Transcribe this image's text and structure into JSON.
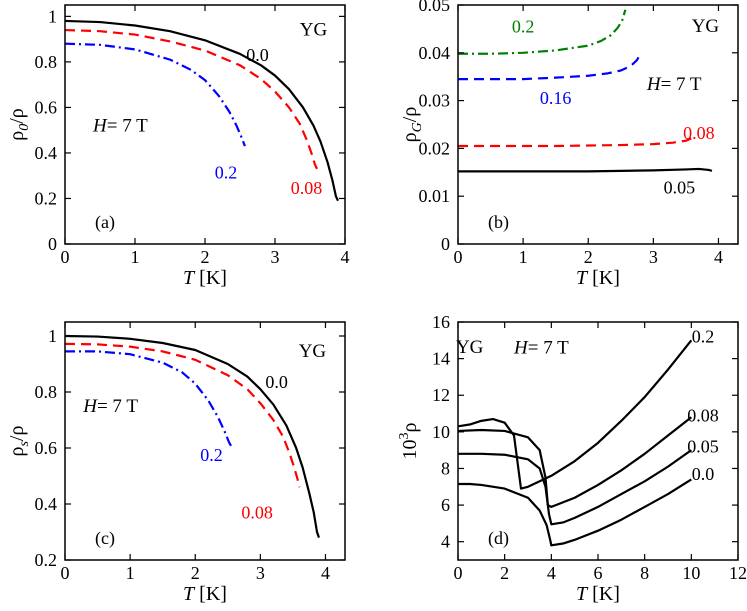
{
  "chart_data": [
    {
      "id": "a",
      "type": "line",
      "panel_label": "(a)",
      "xlabel_italic": "T",
      "xlabel_rest": " [K]",
      "ylabel_main": "ρ",
      "ylabel_sub": "0",
      "ylabel_rest": "/ρ",
      "xlim": [
        0,
        4
      ],
      "ylim": [
        0,
        1.05
      ],
      "xticks": [
        0,
        1,
        2,
        3,
        4
      ],
      "yticks": [
        0,
        0.2,
        0.4,
        0.6,
        0.8,
        1
      ],
      "annotations": [
        {
          "text": "YG",
          "x": 3.55,
          "y": 0.94
        },
        {
          "parts": [
            {
              "text": "H",
              "italic": true
            },
            {
              "text": "= 7 T",
              "italic": false
            }
          ],
          "x": 0.4,
          "y": 0.52
        }
      ],
      "series": [
        {
          "name": "0.0",
          "style": "solid",
          "color": "#000000",
          "label_xy": [
            2.75,
            0.83
          ],
          "x": [
            0,
            0.5,
            1.0,
            1.5,
            2.0,
            2.5,
            2.8,
            3.0,
            3.2,
            3.4,
            3.55,
            3.65,
            3.75,
            3.82,
            3.87,
            3.9
          ],
          "y": [
            0.98,
            0.975,
            0.96,
            0.935,
            0.895,
            0.835,
            0.785,
            0.74,
            0.68,
            0.6,
            0.52,
            0.45,
            0.36,
            0.28,
            0.21,
            0.19
          ]
        },
        {
          "name": "0.08",
          "style": "dashed",
          "color": "#ff0000",
          "label_xy": [
            3.45,
            0.245
          ],
          "x": [
            0,
            0.5,
            1.0,
            1.5,
            2.0,
            2.5,
            2.8,
            3.0,
            3.2,
            3.35,
            3.45,
            3.52,
            3.57,
            3.6
          ],
          "y": [
            0.94,
            0.935,
            0.92,
            0.89,
            0.85,
            0.785,
            0.725,
            0.67,
            0.6,
            0.53,
            0.46,
            0.4,
            0.35,
            0.33
          ]
        },
        {
          "name": "0.2",
          "style": "dashdot",
          "color": "#0000ff",
          "label_xy": [
            2.3,
            0.315
          ],
          "x": [
            0,
            0.5,
            1.0,
            1.5,
            1.8,
            2.0,
            2.2,
            2.35,
            2.45,
            2.52,
            2.57
          ],
          "y": [
            0.88,
            0.875,
            0.855,
            0.81,
            0.765,
            0.72,
            0.65,
            0.58,
            0.52,
            0.47,
            0.43
          ]
        }
      ]
    },
    {
      "id": "b",
      "type": "line",
      "panel_label": "(b)",
      "xlabel_italic": "T",
      "xlabel_rest": " [K]",
      "ylabel_main": "ρ",
      "ylabel_sub": "G",
      "ylabel_rest": "/ρ",
      "xlim": [
        0,
        4.3
      ],
      "ylim": [
        0,
        0.05
      ],
      "xticks": [
        0,
        1,
        2,
        3,
        4
      ],
      "yticks": [
        0,
        0.01,
        0.02,
        0.03,
        0.04,
        0.05
      ],
      "annotations": [
        {
          "text": "YG",
          "x": 3.8,
          "y": 0.0455
        },
        {
          "parts": [
            {
              "text": "H",
              "italic": true
            },
            {
              "text": "= 7 T",
              "italic": false
            }
          ],
          "x": 2.9,
          "y": 0.0335
        }
      ],
      "series": [
        {
          "name": "0.2",
          "style": "dashdot",
          "color": "#008000",
          "label_xy": [
            1.0,
            0.0455
          ],
          "x": [
            0,
            0.5,
            1.0,
            1.5,
            2.0,
            2.2,
            2.35,
            2.45,
            2.52,
            2.57
          ],
          "y": [
            0.0398,
            0.0398,
            0.04,
            0.0405,
            0.0415,
            0.0425,
            0.0437,
            0.0452,
            0.0467,
            0.049
          ]
        },
        {
          "name": "0.16",
          "style": "dashed",
          "color": "#0000ff",
          "label_xy": [
            1.5,
            0.0305
          ],
          "x": [
            0,
            0.5,
            1.0,
            1.5,
            2.0,
            2.3,
            2.5,
            2.65,
            2.75,
            2.8
          ],
          "y": [
            0.0345,
            0.0345,
            0.0345,
            0.0348,
            0.0352,
            0.0357,
            0.0363,
            0.0372,
            0.0385,
            0.0398
          ]
        },
        {
          "name": "0.08",
          "style": "dashed",
          "color": "#ff0000",
          "label_xy": [
            3.7,
            0.0232
          ],
          "x": [
            0,
            0.5,
            1.0,
            1.5,
            2.0,
            2.5,
            3.0,
            3.3,
            3.5,
            3.6
          ],
          "y": [
            0.0205,
            0.0205,
            0.0205,
            0.0205,
            0.0206,
            0.0207,
            0.0209,
            0.0212,
            0.0216,
            0.0222
          ]
        },
        {
          "name": "0.05",
          "style": "solid",
          "color": "#000000",
          "label_xy": [
            3.4,
            0.0118
          ],
          "x": [
            0,
            0.5,
            1.0,
            1.5,
            2.0,
            2.5,
            3.0,
            3.5,
            3.7,
            3.85,
            3.9
          ],
          "y": [
            0.0152,
            0.0152,
            0.0152,
            0.0152,
            0.0152,
            0.0153,
            0.0154,
            0.0156,
            0.0157,
            0.0155,
            0.0153
          ]
        }
      ]
    },
    {
      "id": "c",
      "type": "line",
      "panel_label": "(c)",
      "xlabel_italic": "T",
      "xlabel_rest": " [K]",
      "ylabel_main": "ρ",
      "ylabel_sub": "s",
      "ylabel_rest": "/ρ",
      "xlim": [
        0,
        4.3
      ],
      "ylim": [
        0.2,
        1.05
      ],
      "xticks": [
        0,
        1,
        2,
        3,
        4
      ],
      "yticks": [
        0.2,
        0.4,
        0.6,
        0.8,
        1
      ],
      "annotations": [
        {
          "text": "YG",
          "x": 3.8,
          "y": 0.945
        },
        {
          "parts": [
            {
              "text": "H",
              "italic": true
            },
            {
              "text": "= 7 T",
              "italic": false
            }
          ],
          "x": 0.28,
          "y": 0.75
        }
      ],
      "series": [
        {
          "name": "0.0",
          "style": "solid",
          "color": "#000000",
          "label_xy": [
            3.25,
            0.835
          ],
          "x": [
            0,
            0.5,
            1.0,
            1.5,
            2.0,
            2.5,
            2.8,
            3.0,
            3.2,
            3.4,
            3.55,
            3.65,
            3.75,
            3.82,
            3.87,
            3.9
          ],
          "y": [
            1.0,
            0.998,
            0.99,
            0.975,
            0.95,
            0.9,
            0.855,
            0.81,
            0.755,
            0.68,
            0.6,
            0.53,
            0.44,
            0.37,
            0.3,
            0.28
          ]
        },
        {
          "name": "0.08",
          "style": "dashed",
          "color": "#ff0000",
          "label_xy": [
            2.95,
            0.37
          ],
          "x": [
            0,
            0.5,
            1.0,
            1.5,
            2.0,
            2.5,
            2.8,
            3.0,
            3.2,
            3.35,
            3.45,
            3.52,
            3.57,
            3.6
          ],
          "y": [
            0.972,
            0.97,
            0.962,
            0.945,
            0.915,
            0.86,
            0.81,
            0.76,
            0.7,
            0.64,
            0.58,
            0.53,
            0.49,
            0.46
          ]
        },
        {
          "name": "0.2",
          "style": "dashdot",
          "color": "#0000ff",
          "label_xy": [
            2.25,
            0.575
          ],
          "x": [
            0,
            0.5,
            1.0,
            1.5,
            1.8,
            2.0,
            2.2,
            2.35,
            2.45,
            2.52,
            2.57
          ],
          "y": [
            0.945,
            0.945,
            0.935,
            0.905,
            0.87,
            0.83,
            0.77,
            0.71,
            0.66,
            0.62,
            0.6
          ]
        }
      ]
    },
    {
      "id": "d",
      "type": "line",
      "panel_label": "(d)",
      "xlabel_italic": "T",
      "xlabel_rest": " [K]",
      "ylabel_main": "10",
      "ylabel_sup": "3",
      "ylabel_rest": "ρ",
      "xlim": [
        0,
        12
      ],
      "ylim": [
        3,
        16
      ],
      "xticks": [
        0,
        2,
        4,
        6,
        8,
        10,
        12
      ],
      "yticks": [
        4,
        6,
        8,
        10,
        12,
        14,
        16
      ],
      "annotations": [
        {
          "text": "YG",
          "x": 0.5,
          "y": 14.6
        },
        {
          "parts": [
            {
              "text": "H",
              "italic": true
            },
            {
              "text": "= 7 T",
              "italic": false
            }
          ],
          "x": 2.4,
          "y": 14.6
        }
      ],
      "series": [
        {
          "name": "0.2",
          "style": "solid",
          "color": "#000000",
          "label_xy": [
            10.5,
            15.2
          ],
          "x": [
            0,
            0.5,
            1.0,
            1.5,
            2.0,
            2.4,
            2.7,
            3.0,
            4.0,
            5.0,
            6.0,
            7.0,
            8.0,
            9.0,
            10.0
          ],
          "y": [
            10.3,
            10.4,
            10.6,
            10.7,
            10.5,
            9.8,
            6.9,
            7.0,
            7.6,
            8.4,
            9.4,
            10.6,
            11.9,
            13.4,
            15.0
          ]
        },
        {
          "name": "0.08",
          "style": "solid",
          "color": "#000000",
          "label_xy": [
            10.5,
            10.9
          ],
          "x": [
            0,
            1.0,
            2.0,
            3.0,
            3.5,
            3.75,
            3.85,
            4.0,
            5.0,
            6.0,
            7.0,
            8.0,
            9.0,
            10.0
          ],
          "y": [
            10.05,
            10.1,
            10.05,
            9.7,
            9.0,
            7.5,
            6.0,
            5.9,
            6.4,
            7.1,
            7.9,
            8.8,
            9.8,
            10.8
          ]
        },
        {
          "name": "0.05",
          "style": "solid",
          "color": "#000000",
          "label_xy": [
            10.5,
            9.2
          ],
          "x": [
            0,
            1.0,
            2.0,
            3.0,
            3.5,
            3.75,
            3.9,
            4.0,
            4.5,
            5.0,
            6.0,
            7.0,
            8.0,
            9.0,
            10.0
          ],
          "y": [
            8.8,
            8.8,
            8.75,
            8.5,
            8.0,
            7.0,
            5.5,
            4.95,
            5.05,
            5.3,
            5.9,
            6.6,
            7.3,
            8.1,
            9.0
          ]
        },
        {
          "name": "0.0",
          "style": "solid",
          "color": "#000000",
          "label_xy": [
            10.5,
            7.7
          ],
          "x": [
            0,
            0.5,
            1.0,
            2.0,
            3.0,
            3.5,
            3.8,
            3.95,
            4.0,
            4.5,
            5.0,
            6.0,
            7.0,
            8.0,
            9.0,
            10.0
          ],
          "y": [
            7.15,
            7.15,
            7.1,
            6.9,
            6.4,
            5.7,
            4.9,
            4.1,
            3.8,
            3.9,
            4.1,
            4.6,
            5.2,
            5.9,
            6.6,
            7.4
          ]
        }
      ]
    }
  ]
}
